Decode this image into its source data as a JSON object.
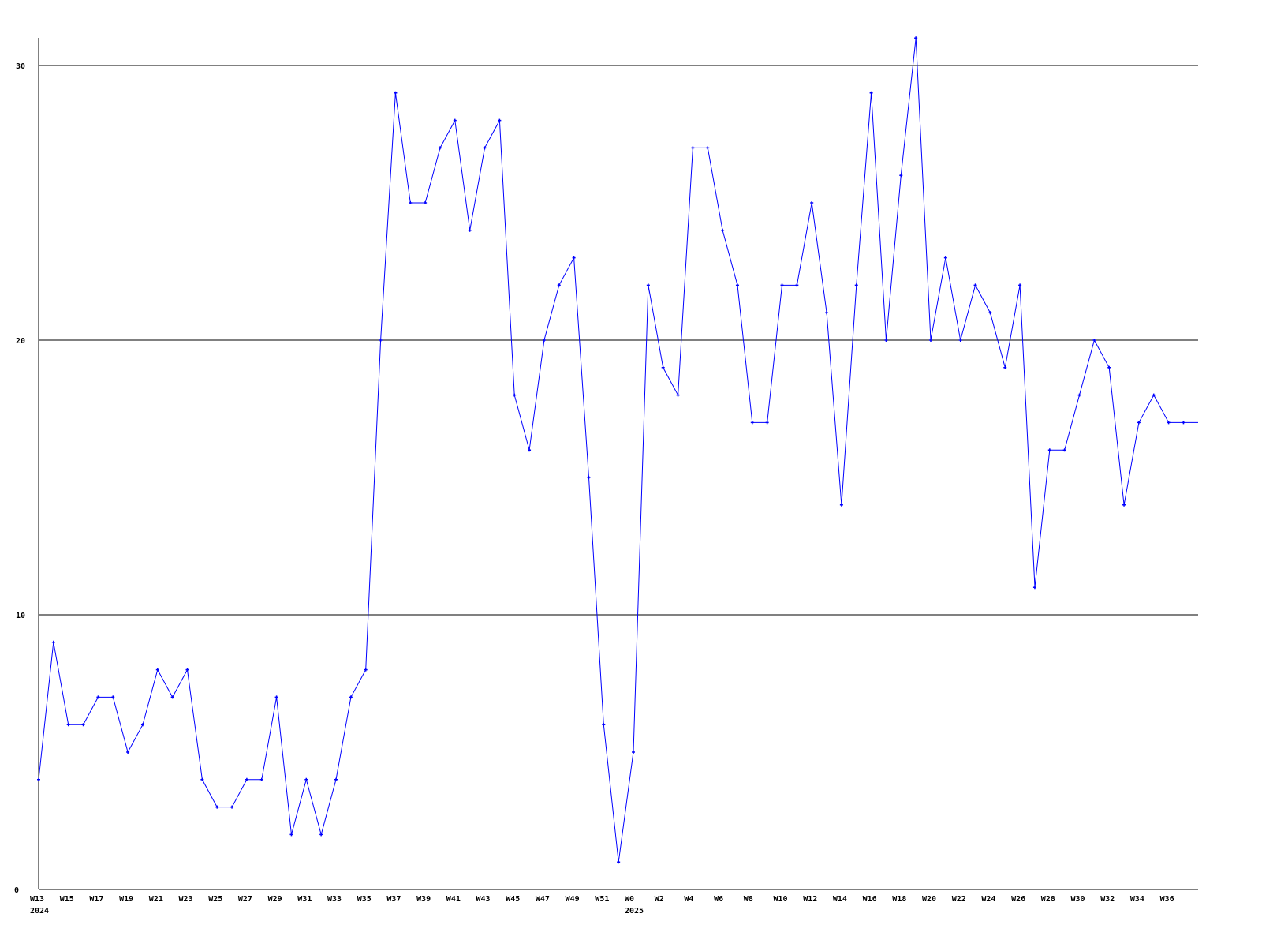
{
  "chart_data": {
    "type": "line",
    "title": "",
    "xlabel": "",
    "ylabel": "",
    "ylim": [
      0,
      31
    ],
    "yticks": [
      0,
      10,
      20,
      30
    ],
    "grid": true,
    "line_color": "#0000ff",
    "years": [
      {
        "label": "2024",
        "weeks": [
          13,
          14,
          15,
          16,
          17,
          18,
          19,
          20,
          21,
          22,
          23,
          24,
          25,
          26,
          27,
          28,
          29,
          30,
          31,
          32,
          33,
          34,
          35,
          36,
          37,
          38,
          39,
          40,
          41,
          42,
          43,
          44,
          45,
          46,
          47,
          48,
          49,
          50,
          51,
          52
        ],
        "values": [
          4,
          9,
          6,
          6,
          7,
          7,
          5,
          6,
          8,
          7,
          8,
          4,
          3,
          3,
          4,
          4,
          7,
          2,
          4,
          2,
          4,
          7,
          8,
          20,
          29,
          25,
          25,
          27,
          28,
          24,
          27,
          28,
          18,
          16,
          20,
          22,
          23,
          15,
          6,
          1
        ]
      },
      {
        "label": "2025",
        "weeks": [
          0,
          1,
          2,
          3,
          4,
          5,
          6,
          7,
          8,
          9,
          10,
          11,
          12,
          13,
          14,
          15,
          16,
          17,
          18,
          19,
          20,
          21,
          22,
          23,
          24,
          25,
          26,
          27,
          28,
          29,
          30,
          31,
          32,
          33,
          34,
          35,
          36,
          37
        ],
        "values": [
          5,
          22,
          19,
          18,
          27,
          27,
          24,
          22,
          17,
          17,
          22,
          22,
          25,
          21,
          14,
          22,
          29,
          20,
          26,
          31,
          20,
          23,
          20,
          22,
          21,
          19,
          22,
          11,
          16,
          16,
          18,
          20,
          19,
          14,
          17,
          18,
          17,
          17
        ]
      }
    ],
    "xtick_labels": [
      "W13",
      "W15",
      "W17",
      "W19",
      "W21",
      "W23",
      "W25",
      "W27",
      "W29",
      "W31",
      "W33",
      "W35",
      "W37",
      "W39",
      "W41",
      "W43",
      "W45",
      "W47",
      "W49",
      "W51",
      "W0",
      "W2",
      "W4",
      "W6",
      "W8",
      "W10",
      "W12",
      "W14",
      "W16",
      "W18",
      "W20",
      "W22",
      "W24",
      "W26",
      "W28",
      "W30",
      "W32",
      "W34",
      "W36"
    ]
  }
}
